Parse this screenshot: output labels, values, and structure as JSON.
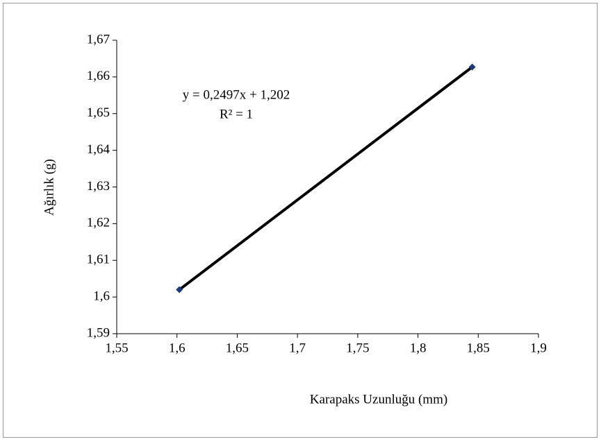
{
  "chart_data": {
    "type": "scatter",
    "x_label": "Karapaks Uzunluğu (mm)",
    "y_label": "Ağırlık (g)",
    "annotations": [
      "y = 0,2497x + 1,202",
      "R² = 1"
    ],
    "series": [
      {
        "color": "#1f3a7a",
        "x": [
          1.602,
          1.845
        ],
        "values": [
          1.602,
          1.6627
        ]
      }
    ],
    "trendline": true,
    "trendline_color": "#000000",
    "grid": false,
    "xlim": [
      1.55,
      1.9
    ],
    "xticks": [
      {
        "value": 1.55,
        "label": "1,55"
      },
      {
        "value": 1.6,
        "label": "1,6"
      },
      {
        "value": 1.65,
        "label": "1,65"
      },
      {
        "value": 1.7,
        "label": "1,7"
      },
      {
        "value": 1.75,
        "label": "1,75"
      },
      {
        "value": 1.8,
        "label": "1,8"
      },
      {
        "value": 1.85,
        "label": "1,85"
      },
      {
        "value": 1.9,
        "label": "1,9"
      }
    ],
    "ylim": [
      1.59,
      1.67
    ],
    "yticks": [
      {
        "value": 1.59,
        "label": "1,59"
      },
      {
        "value": 1.6,
        "label": "1,6"
      },
      {
        "value": 1.61,
        "label": "1,61"
      },
      {
        "value": 1.62,
        "label": "1,62"
      },
      {
        "value": 1.63,
        "label": "1,63"
      },
      {
        "value": 1.64,
        "label": "1,64"
      },
      {
        "value": 1.65,
        "label": "1,65"
      },
      {
        "value": 1.66,
        "label": "1,66"
      },
      {
        "value": 1.67,
        "label": "1,67"
      }
    ]
  }
}
